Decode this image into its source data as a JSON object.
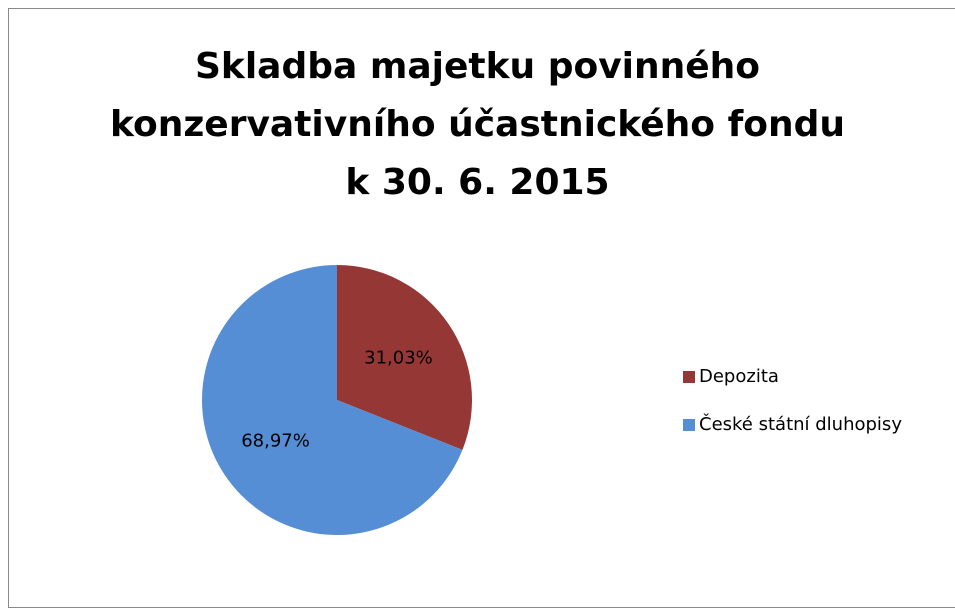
{
  "chart_data": {
    "type": "pie",
    "title": "Skladba majetku povinného konzervativního účastnického fondu k 30. 6. 2015",
    "categories": [
      "Depozita",
      "České státní dluhopisy"
    ],
    "values": [
      31.03,
      68.97
    ],
    "value_labels": [
      "31,03%",
      "68,97%"
    ],
    "colors": [
      "#953735",
      "#558ed5"
    ],
    "legend": "right"
  }
}
